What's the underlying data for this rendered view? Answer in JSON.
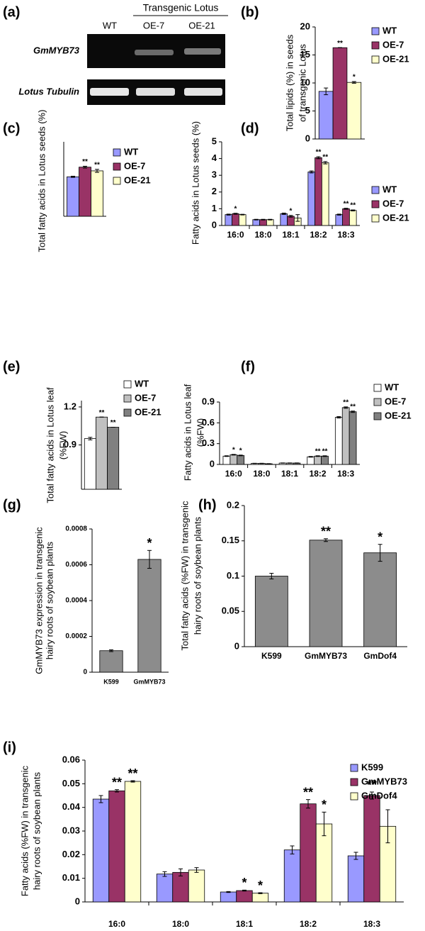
{
  "gel": {
    "panel": "(a)",
    "header": "Transgenic Lotus",
    "lanes": [
      "WT",
      "OE-7",
      "OE-21"
    ],
    "rows": [
      "GmMYB73",
      "Lotus Tubulin"
    ]
  },
  "chart_data": [
    {
      "type": "bar",
      "panel": "(b)",
      "y_label": [
        "Total lipids (%) in seeds",
        "of transgenic Lotus"
      ],
      "categories": [
        null
      ],
      "ylim": [
        0,
        20
      ],
      "yticks": [
        0,
        5,
        10,
        15,
        20
      ],
      "series": [
        {
          "name": "WT",
          "color": "#9999ff",
          "values": [
            8.5
          ],
          "errors": [
            0.6
          ],
          "annotations": [
            null
          ]
        },
        {
          "name": "OE-7",
          "color": "#993366",
          "values": [
            16.3
          ],
          "errors": [
            0
          ],
          "annotations": [
            "**"
          ]
        },
        {
          "name": "OE-21",
          "color": "#ffffcc",
          "values": [
            10.1
          ],
          "errors": [
            0.15
          ],
          "annotations": [
            "*"
          ]
        }
      ]
    },
    {
      "type": "bar",
      "panel": "(c)",
      "y_label": [
        "Total fatty acids in Lotus seeds (%)"
      ],
      "categories": [
        null
      ],
      "ylim": [
        0,
        10
      ],
      "yticks": [],
      "series": [
        {
          "name": "WT",
          "color": "#9999ff",
          "values": [
            5.3
          ],
          "errors": [
            0.08
          ],
          "annotations": [
            null
          ]
        },
        {
          "name": "OE-7",
          "color": "#993366",
          "values": [
            6.6
          ],
          "errors": [
            0.12
          ],
          "annotations": [
            "**"
          ]
        },
        {
          "name": "OE-21",
          "color": "#ffffcc",
          "values": [
            6.1
          ],
          "errors": [
            0.2
          ],
          "annotations": [
            "**"
          ]
        }
      ]
    },
    {
      "type": "bar",
      "panel": "(d)",
      "y_label": [
        "Fatty acids in Lotus seeds (%)"
      ],
      "categories": [
        "16:0",
        "18:0",
        "18:1",
        "18:2",
        "18:3"
      ],
      "ylim": [
        0,
        5
      ],
      "yticks": [
        0,
        1,
        2,
        3,
        4,
        5
      ],
      "series": [
        {
          "name": "WT",
          "color": "#9999ff",
          "values": [
            0.65,
            0.35,
            0.7,
            3.2,
            0.65
          ],
          "errors": [
            0.03,
            0.02,
            0.04,
            0.06,
            0.03
          ],
          "annotations": [
            null,
            null,
            null,
            null,
            null
          ]
        },
        {
          "name": "OE-7",
          "color": "#993366",
          "values": [
            0.7,
            0.35,
            0.55,
            4.05,
            1.0
          ],
          "errors": [
            0.03,
            0.02,
            0.05,
            0.06,
            0.03
          ],
          "annotations": [
            "*",
            null,
            "*",
            "**",
            "**"
          ]
        },
        {
          "name": "OE-21",
          "color": "#ffffcc",
          "values": [
            0.65,
            0.35,
            0.45,
            3.75,
            0.9
          ],
          "errors": [
            0.02,
            0.02,
            0.2,
            0.07,
            0.03
          ],
          "annotations": [
            null,
            null,
            null,
            "**",
            "**"
          ]
        }
      ]
    },
    {
      "type": "bar",
      "panel": "(e)",
      "y_label": [
        "Total fatty acids in Lotus leaf",
        "(%FW)"
      ],
      "categories": [
        null
      ],
      "ylim": [
        0.55,
        1.25
      ],
      "yticks": [
        0.9,
        1.2
      ],
      "series": [
        {
          "name": "WT",
          "color": "#ffffff",
          "values": [
            0.95
          ],
          "errors": [
            0.01
          ],
          "annotations": [
            null
          ]
        },
        {
          "name": "OE-7",
          "color": "#c0c0c0",
          "values": [
            1.12
          ],
          "errors": [
            0
          ],
          "annotations": [
            "**"
          ]
        },
        {
          "name": "OE-21",
          "color": "#808080",
          "values": [
            1.04
          ],
          "errors": [
            0
          ],
          "annotations": [
            "**"
          ]
        }
      ]
    },
    {
      "type": "bar",
      "panel": "(f)",
      "y_label": [
        "Fatty acids in Lotus leaf",
        "(%FW)"
      ],
      "categories": [
        "16:0",
        "18:0",
        "18:1",
        "18:2",
        "18:3"
      ],
      "ylim": [
        0,
        0.9
      ],
      "yticks": [
        0,
        0.3,
        0.6,
        0.9
      ],
      "series": [
        {
          "name": "WT",
          "color": "#ffffff",
          "values": [
            0.12,
            0.015,
            0.02,
            0.11,
            0.68
          ],
          "errors": [
            0.005,
            0.002,
            0.002,
            0.005,
            0.01
          ],
          "annotations": [
            null,
            null,
            null,
            null,
            null
          ]
        },
        {
          "name": "OE-7",
          "color": "#c0c0c0",
          "values": [
            0.14,
            0.015,
            0.02,
            0.12,
            0.82
          ],
          "errors": [
            0.005,
            0.002,
            0.002,
            0.005,
            0.01
          ],
          "annotations": [
            "*",
            null,
            null,
            "**",
            "**"
          ]
        },
        {
          "name": "OE-21",
          "color": "#808080",
          "values": [
            0.13,
            0.01,
            0.02,
            0.12,
            0.76
          ],
          "errors": [
            0.005,
            0.002,
            0.002,
            0.005,
            0.01
          ],
          "annotations": [
            "*",
            null,
            null,
            "**",
            "**"
          ]
        }
      ]
    },
    {
      "type": "bar",
      "panel": "(g)",
      "y_label": [
        "GmMYB73 expression in transgenic",
        "hairy roots of soybean plants"
      ],
      "categories": [
        "K599",
        "GmMYB73"
      ],
      "ylim": [
        0,
        0.0008
      ],
      "yticks": [
        0,
        0.0002,
        0.0004,
        0.0006,
        0.0008
      ],
      "color": "#8c8c8c",
      "values": [
        0.00012,
        0.00063
      ],
      "errors": [
        5e-06,
        5e-05
      ],
      "annotations": [
        null,
        "*"
      ]
    },
    {
      "type": "bar",
      "panel": "(h)",
      "y_label": [
        "Total fatty acids (%FW) in transgenic",
        "hairy roots of soybean plants"
      ],
      "categories": [
        "K599",
        "GmMYB73",
        "GmDof4"
      ],
      "ylim": [
        0,
        0.2
      ],
      "yticks": [
        0,
        0.05,
        0.1,
        0.15,
        0.2
      ],
      "color": "#8c8c8c",
      "values": [
        0.1,
        0.151,
        0.133
      ],
      "errors": [
        0.004,
        0.002,
        0.012
      ],
      "annotations": [
        null,
        "**",
        "*"
      ]
    },
    {
      "type": "bar",
      "panel": "(i)",
      "y_label": [
        "Fatty acids (%FW) in transgenic",
        "hairy roots of soybean plants"
      ],
      "categories": [
        "16:0",
        "18:0",
        "18:1",
        "18:2",
        "18:3"
      ],
      "ylim": [
        0,
        0.06
      ],
      "yticks": [
        0,
        0.01,
        0.02,
        0.03,
        0.04,
        0.05,
        0.06
      ],
      "series": [
        {
          "name": "K599",
          "color": "#9999ff",
          "values": [
            0.0435,
            0.0118,
            0.0042,
            0.022,
            0.0195
          ],
          "errors": [
            0.0015,
            0.001,
            0.0002,
            0.0017,
            0.0015
          ],
          "annotations": [
            null,
            null,
            null,
            null,
            null
          ]
        },
        {
          "name": "GmMYB73",
          "color": "#993366",
          "values": [
            0.047,
            0.0125,
            0.0048,
            0.0415,
            0.045
          ],
          "errors": [
            0.0005,
            0.0015,
            0.0002,
            0.0018,
            0.0015
          ],
          "annotations": [
            "**",
            null,
            "*",
            "**",
            "**"
          ]
        },
        {
          "name": "GmDof4",
          "color": "#ffffcc",
          "values": [
            0.051,
            0.0135,
            0.0037,
            0.033,
            0.032
          ],
          "errors": [
            0.0003,
            0.001,
            0.0002,
            0.005,
            0.007
          ],
          "annotations": [
            "**",
            null,
            "*",
            "*",
            null
          ]
        }
      ]
    }
  ]
}
